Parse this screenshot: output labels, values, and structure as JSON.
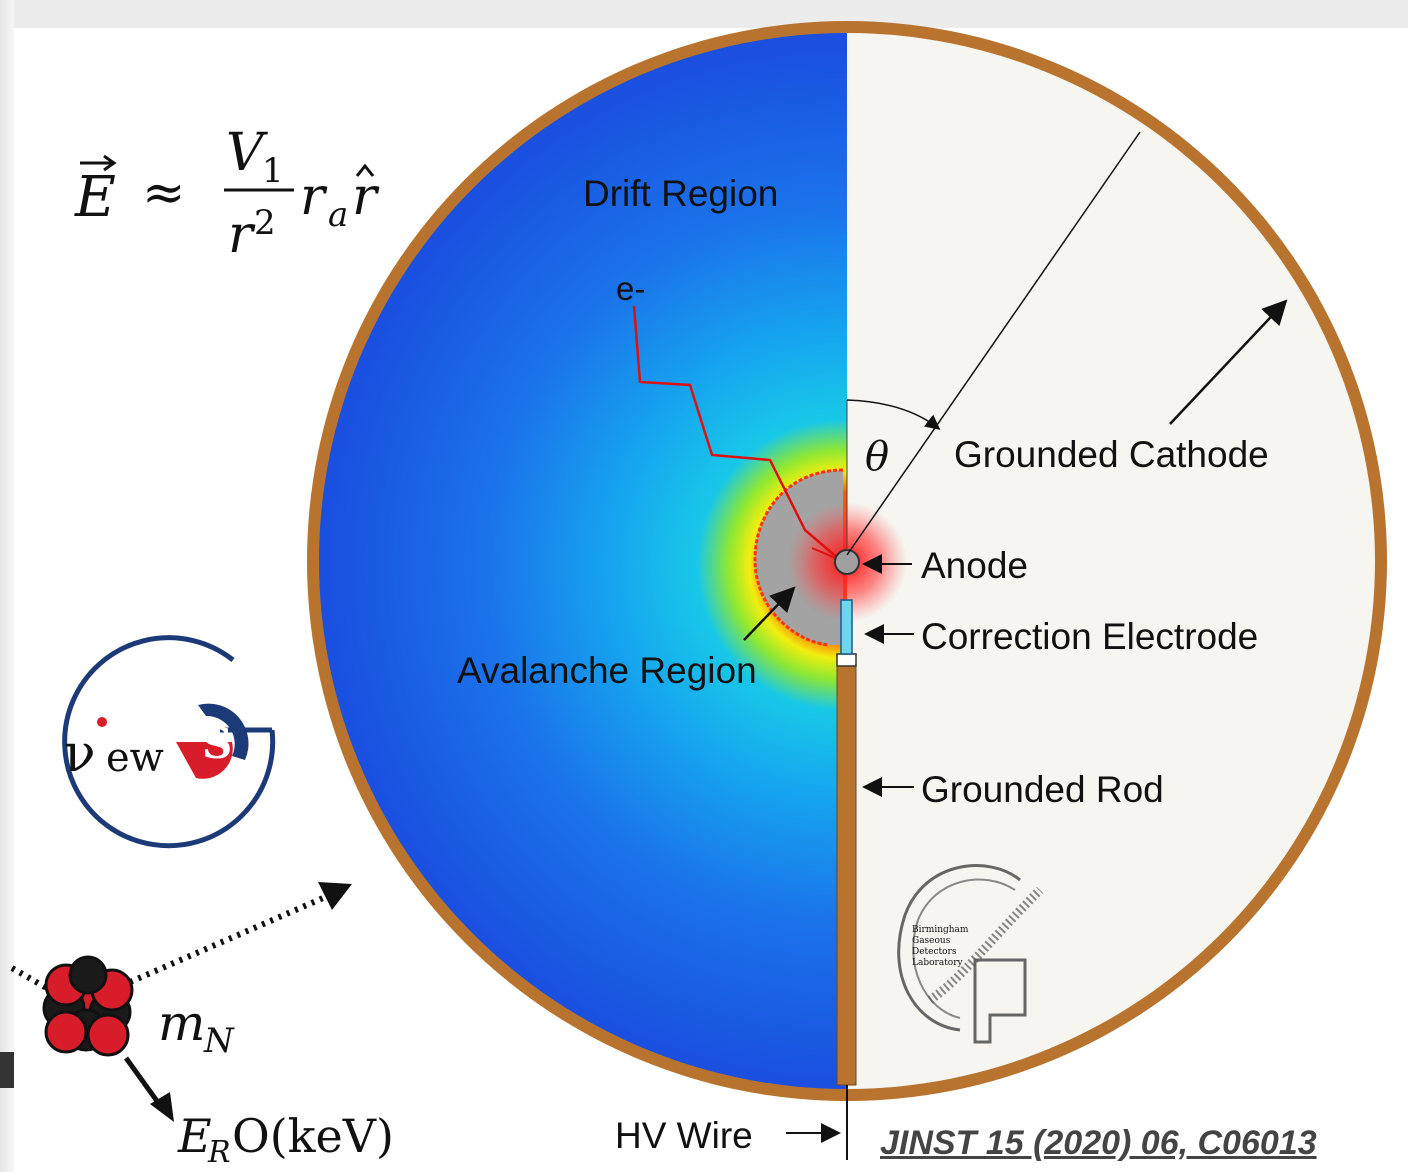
{
  "formula": {
    "lhs": "E",
    "approx": "≈",
    "numerator": "V",
    "numerator_sub": "1",
    "denominator": "r",
    "denominator_sup": "2",
    "tail_r": "r",
    "tail_sub": "a",
    "tail_rhat": "r"
  },
  "labels": {
    "drift_region": "Drift Region",
    "electron": "e-",
    "theta": "θ",
    "grounded_cathode": "Grounded Cathode",
    "anode": "Anode",
    "correction_electrode": "Correction Electrode",
    "avalanche_region": "Avalanche Region",
    "grounded_rod": "Grounded Rod",
    "hv_wire": "HV Wire"
  },
  "nucleus": {
    "mass_symbol": "m",
    "mass_sub": "N",
    "recoil_symbol": "E",
    "recoil_sub": "R",
    "recoil_text": "O(keV)"
  },
  "news_g_logo": {
    "text_v": "ν",
    "text_ew": "ew",
    "text_s": "S"
  },
  "bgdl_logo": {
    "lines": [
      "Birmingham",
      "Gaseous",
      "Detectors",
      "Laboratory"
    ]
  },
  "citation": "JINST 15 (2020) 06, C06013",
  "colors": {
    "cathode": "#b8732f",
    "field_low": "#1a4fe0",
    "field_mid": "#18c8e8",
    "field_high": "#f2ee10",
    "avalanche": "#a3a3a3",
    "electron_track": "#e01010",
    "right_half": "#f6f5f0"
  }
}
